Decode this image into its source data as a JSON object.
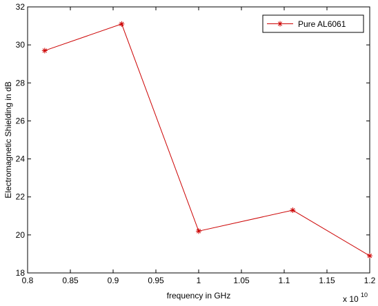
{
  "chart_data": {
    "type": "line",
    "title": "",
    "xlabel": "frequency in GHz",
    "ylabel": "Electromagnetic Shielding in dB",
    "x_multiplier_label": "x 10",
    "x_multiplier_exponent": "10",
    "xlim": [
      0.8,
      1.2
    ],
    "ylim": [
      18,
      32
    ],
    "x_ticks": [
      0.8,
      0.85,
      0.9,
      0.95,
      1,
      1.05,
      1.1,
      1.15,
      1.2
    ],
    "x_tick_labels": [
      "0.8",
      "0.85",
      "0.9",
      "0.95",
      "1",
      "1.05",
      "1.1",
      "1.15",
      "1.2"
    ],
    "y_ticks": [
      18,
      20,
      22,
      24,
      26,
      28,
      30,
      32
    ],
    "y_tick_labels": [
      "18",
      "20",
      "22",
      "24",
      "26",
      "28",
      "30",
      "32"
    ],
    "grid": false,
    "legend_position": "top-right",
    "series": [
      {
        "name": "Pure AL6061",
        "color": "#cc0000",
        "marker": "asterisk",
        "x": [
          0.82,
          0.91,
          1.0,
          1.11,
          1.2
        ],
        "y": [
          29.7,
          31.1,
          20.2,
          21.3,
          18.9
        ]
      }
    ]
  }
}
